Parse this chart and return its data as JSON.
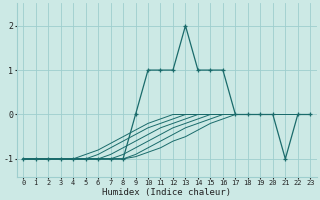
{
  "xlabel": "Humidex (Indice chaleur)",
  "xlim": [
    -0.5,
    23.5
  ],
  "ylim": [
    -1.4,
    2.5
  ],
  "yticks": [
    -1,
    0,
    1,
    2
  ],
  "xticks": [
    0,
    1,
    2,
    3,
    4,
    5,
    6,
    7,
    8,
    9,
    10,
    11,
    12,
    13,
    14,
    15,
    16,
    17,
    18,
    19,
    20,
    21,
    22,
    23
  ],
  "bg_color": "#cce9e5",
  "grid_color": "#9ecece",
  "line_color": "#1a6b6b",
  "font_color": "#222222",
  "main_line": {
    "x": [
      0,
      1,
      2,
      3,
      4,
      5,
      6,
      7,
      8,
      9,
      10,
      11,
      12,
      13,
      14,
      15,
      16,
      17,
      18,
      19,
      20,
      21,
      22,
      23
    ],
    "y": [
      -1,
      -1,
      -1,
      -1,
      -1,
      -1,
      -1,
      -1,
      -1,
      0,
      1,
      1,
      1,
      2,
      1,
      1,
      1,
      0,
      0,
      0,
      0,
      -1,
      0,
      0
    ]
  },
  "fan_lines": [
    [
      -1,
      -1,
      -1,
      -1,
      -1,
      -1,
      -1,
      -1,
      -1,
      -0.95,
      -0.85,
      -0.75,
      -0.6,
      -0.5,
      -0.35,
      -0.2,
      -0.1,
      0,
      0,
      0,
      0,
      0,
      0,
      0
    ],
    [
      -1,
      -1,
      -1,
      -1,
      -1,
      -1,
      -1,
      -1,
      -1,
      -0.9,
      -0.75,
      -0.6,
      -0.45,
      -0.3,
      -0.2,
      -0.1,
      0,
      0,
      0,
      0,
      0,
      0,
      0,
      0
    ],
    [
      -1,
      -1,
      -1,
      -1,
      -1,
      -1,
      -1,
      -1,
      -0.9,
      -0.75,
      -0.6,
      -0.45,
      -0.3,
      -0.2,
      -0.1,
      0,
      0,
      0,
      0,
      0,
      0,
      0,
      0,
      0
    ],
    [
      -1,
      -1,
      -1,
      -1,
      -1,
      -1,
      -1,
      -0.9,
      -0.75,
      -0.6,
      -0.45,
      -0.3,
      -0.2,
      -0.1,
      0,
      0,
      0,
      0,
      0,
      0,
      0,
      0,
      0,
      0
    ],
    [
      -1,
      -1,
      -1,
      -1,
      -1,
      -1,
      -0.9,
      -0.75,
      -0.6,
      -0.45,
      -0.3,
      -0.2,
      -0.1,
      0,
      0,
      0,
      0,
      0,
      0,
      0,
      0,
      0,
      0,
      0
    ],
    [
      -1,
      -1,
      -1,
      -1,
      -1,
      -0.9,
      -0.8,
      -0.65,
      -0.5,
      -0.35,
      -0.2,
      -0.1,
      0,
      0,
      0,
      0,
      0,
      0,
      0,
      0,
      0,
      0,
      0,
      0
    ]
  ]
}
